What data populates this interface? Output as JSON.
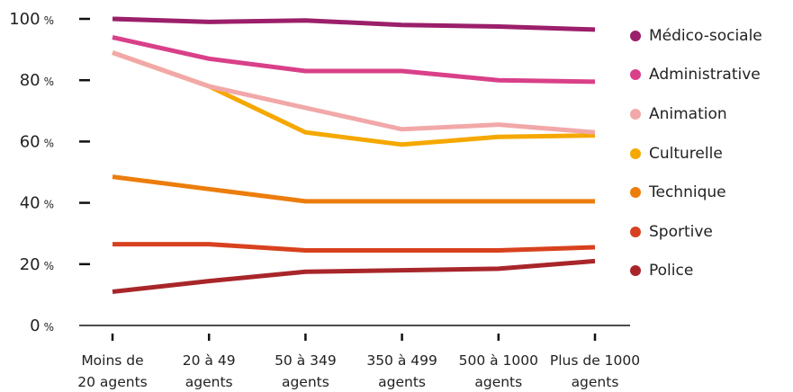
{
  "chart_data": {
    "type": "line",
    "categories": [
      [
        "Moins de",
        "20 agents"
      ],
      [
        "20 à 49",
        "agents"
      ],
      [
        "50 à 349",
        "agents"
      ],
      [
        "350 à 499",
        "agents"
      ],
      [
        "500 à 1000",
        "agents"
      ],
      [
        "Plus de 1000",
        "agents"
      ]
    ],
    "y_ticks": [
      0,
      20,
      40,
      60,
      80,
      100
    ],
    "y_unit": "%",
    "ylim": [
      0,
      100
    ],
    "grid": false,
    "legend_position": "right",
    "series": [
      {
        "name": "Médico-sociale",
        "color": "#9b1f6a",
        "values": [
          100,
          99,
          99.5,
          98,
          97.5,
          96.5
        ]
      },
      {
        "name": "Administrative",
        "color": "#d94089",
        "values": [
          94,
          87,
          83,
          83,
          80,
          79.5
        ]
      },
      {
        "name": "Animation",
        "color": "#f2a8a8",
        "values": [
          89,
          78,
          71,
          64,
          65.5,
          63
        ]
      },
      {
        "name": "Culturelle",
        "color": "#f5a800",
        "values": [
          89,
          78,
          63,
          59,
          61.5,
          62
        ]
      },
      {
        "name": "Technique",
        "color": "#ec7d0c",
        "values": [
          48.5,
          44.5,
          40.5,
          40.5,
          40.5,
          40.5
        ]
      },
      {
        "name": "Sportive",
        "color": "#d8411e",
        "values": [
          26.5,
          26.5,
          24.5,
          24.5,
          24.5,
          25.5
        ]
      },
      {
        "name": "Police",
        "color": "#a8262a",
        "values": [
          11,
          14.5,
          17.5,
          18,
          18.5,
          21
        ]
      }
    ]
  }
}
